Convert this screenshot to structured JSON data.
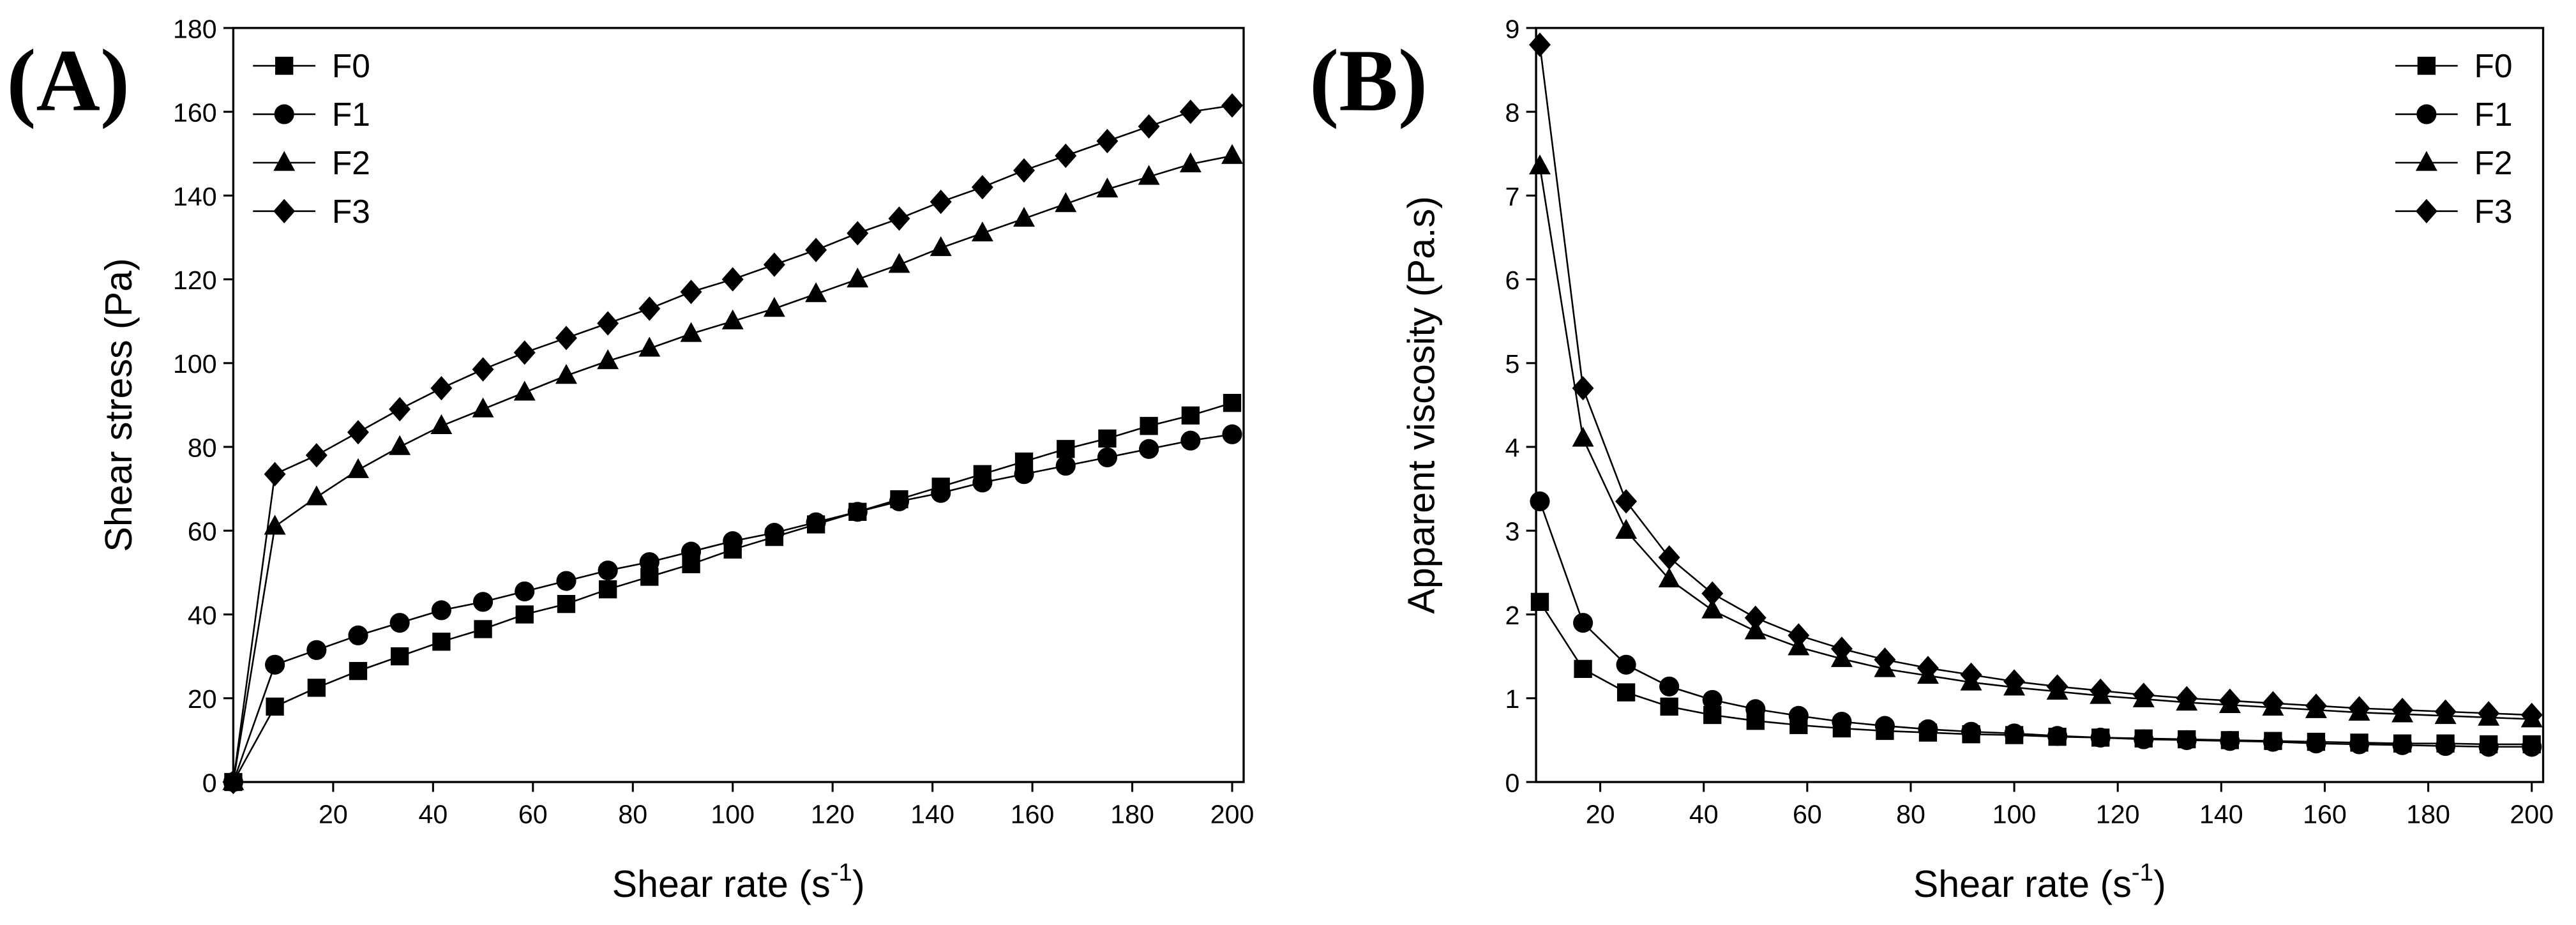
{
  "chart_data": [
    {
      "type": "line",
      "panel_label": "(A)",
      "xlabel": [
        "Shear rate (s",
        "-1",
        ")"
      ],
      "ylabel": "Shear stress (Pa)",
      "legend": "upper left",
      "xlim": [
        0,
        202.3
      ],
      "ylim": [
        0,
        180
      ],
      "xticks": [
        20,
        40,
        60,
        80,
        100,
        120,
        140,
        160,
        180,
        200
      ],
      "yticks": [
        0,
        20,
        40,
        60,
        80,
        100,
        120,
        140,
        160,
        180
      ],
      "x": [
        0,
        8.33,
        16.67,
        25,
        33.33,
        41.67,
        50,
        58.33,
        66.67,
        75,
        83.33,
        91.67,
        100,
        108.33,
        116.67,
        125,
        133.33,
        141.67,
        150,
        158.33,
        166.67,
        175,
        183.33,
        191.67,
        200
      ],
      "series": [
        {
          "name": "F0",
          "marker": "square",
          "color": "#000000",
          "values": [
            0,
            18,
            22.5,
            26.5,
            30,
            33.5,
            36.5,
            40,
            42.5,
            46,
            49,
            52,
            55.5,
            58.5,
            61.5,
            64.5,
            67.5,
            70.5,
            73.5,
            76.5,
            79.5,
            82,
            85,
            87.5,
            90.5
          ]
        },
        {
          "name": "F1",
          "marker": "circle",
          "color": "#000000",
          "values": [
            0,
            28,
            31.5,
            35,
            38,
            41,
            43,
            45.5,
            48,
            50.5,
            52.5,
            55,
            57.5,
            59.5,
            62,
            64.5,
            67,
            69,
            71.5,
            73.5,
            75.5,
            77.5,
            79.5,
            81.5,
            83
          ]
        },
        {
          "name": "F2",
          "marker": "triangle",
          "color": "#000000",
          "values": [
            0,
            61,
            68,
            74.5,
            80,
            85,
            89,
            93,
            97,
            100.5,
            103.5,
            107,
            110,
            113,
            116.5,
            120,
            123.5,
            127.5,
            131,
            134.5,
            138,
            141.5,
            144.5,
            147.5,
            149.5
          ]
        },
        {
          "name": "F3",
          "marker": "diamond",
          "color": "#000000",
          "values": [
            0,
            73.5,
            78,
            83.5,
            89,
            94,
            98.5,
            102.5,
            106,
            109.5,
            113,
            117,
            120,
            123.5,
            127,
            131,
            134.5,
            138.5,
            142,
            146,
            149.5,
            153,
            156.5,
            160,
            161.5
          ]
        }
      ]
    },
    {
      "type": "line",
      "panel_label": "(B)",
      "xlabel": [
        "Shear rate (s",
        "-1",
        ")"
      ],
      "ylabel": "Apparent viscosity (Pa.s)",
      "legend": "upper right",
      "xlim": [
        7.6,
        202.2
      ],
      "ylim": [
        0,
        9
      ],
      "xticks": [
        20,
        40,
        60,
        80,
        100,
        120,
        140,
        160,
        180,
        200
      ],
      "yticks": [
        0,
        1,
        2,
        3,
        4,
        5,
        6,
        7,
        8,
        9
      ],
      "x": [
        8.33,
        16.67,
        25,
        33.33,
        41.67,
        50,
        58.33,
        66.67,
        75,
        83.33,
        91.67,
        100,
        108.33,
        116.67,
        125,
        133.33,
        141.67,
        150,
        158.33,
        166.67,
        175,
        183.33,
        191.67,
        200
      ],
      "series": [
        {
          "name": "F0",
          "marker": "square",
          "color": "#000000",
          "values": [
            2.15,
            1.35,
            1.07,
            0.9,
            0.8,
            0.73,
            0.68,
            0.64,
            0.61,
            0.59,
            0.57,
            0.56,
            0.54,
            0.53,
            0.52,
            0.51,
            0.5,
            0.49,
            0.48,
            0.47,
            0.46,
            0.46,
            0.45,
            0.45
          ]
        },
        {
          "name": "F1",
          "marker": "circle",
          "color": "#000000",
          "values": [
            3.35,
            1.9,
            1.4,
            1.14,
            0.98,
            0.87,
            0.79,
            0.72,
            0.67,
            0.63,
            0.6,
            0.58,
            0.55,
            0.53,
            0.51,
            0.5,
            0.49,
            0.48,
            0.46,
            0.45,
            0.44,
            0.43,
            0.42,
            0.42
          ]
        },
        {
          "name": "F2",
          "marker": "triangle",
          "color": "#000000",
          "values": [
            7.35,
            4.1,
            3.0,
            2.42,
            2.05,
            1.8,
            1.61,
            1.47,
            1.35,
            1.27,
            1.19,
            1.13,
            1.08,
            1.03,
            0.99,
            0.95,
            0.92,
            0.89,
            0.86,
            0.83,
            0.81,
            0.79,
            0.77,
            0.75
          ]
        },
        {
          "name": "F3",
          "marker": "diamond",
          "color": "#000000",
          "values": [
            8.8,
            4.7,
            3.35,
            2.68,
            2.25,
            1.96,
            1.75,
            1.59,
            1.46,
            1.36,
            1.28,
            1.2,
            1.14,
            1.09,
            1.04,
            1.0,
            0.97,
            0.94,
            0.91,
            0.88,
            0.86,
            0.84,
            0.82,
            0.8
          ]
        }
      ]
    }
  ]
}
